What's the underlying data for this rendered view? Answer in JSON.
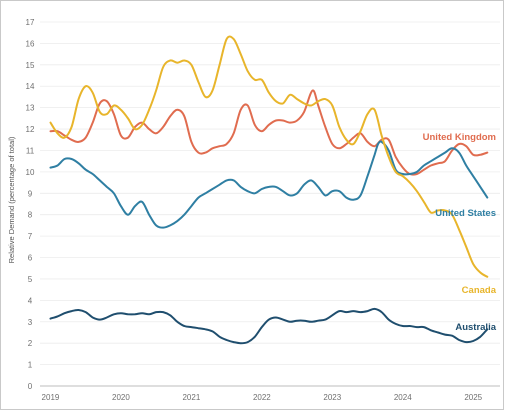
{
  "chart_data": {
    "type": "line",
    "title": "",
    "ylabel": "Relative Demand (percentage of total)",
    "xlabel": "",
    "xlim": [
      2018.88,
      2025.38
    ],
    "ylim": [
      0,
      17
    ],
    "x_ticks": [
      "2019",
      "2020",
      "2021",
      "2022",
      "2023",
      "2024",
      "2025"
    ],
    "y_ticks": [
      "0",
      "1",
      "2",
      "3",
      "4",
      "5",
      "6",
      "7",
      "8",
      "9",
      "10",
      "11",
      "12",
      "13",
      "14",
      "15",
      "16",
      "17"
    ],
    "grid": "horizontal",
    "legend": "inline-labels",
    "series": [
      {
        "name": "United Kingdom",
        "color": "#e06c4f",
        "points": [
          [
            2019.0,
            11.9
          ],
          [
            2019.1,
            11.9
          ],
          [
            2019.2,
            11.7
          ],
          [
            2019.3,
            11.5
          ],
          [
            2019.4,
            11.4
          ],
          [
            2019.5,
            11.6
          ],
          [
            2019.6,
            12.3
          ],
          [
            2019.7,
            13.2
          ],
          [
            2019.8,
            13.3
          ],
          [
            2019.9,
            12.7
          ],
          [
            2020.0,
            11.7
          ],
          [
            2020.1,
            11.6
          ],
          [
            2020.2,
            12.1
          ],
          [
            2020.3,
            12.3
          ],
          [
            2020.4,
            12.0
          ],
          [
            2020.5,
            11.8
          ],
          [
            2020.6,
            12.1
          ],
          [
            2020.7,
            12.6
          ],
          [
            2020.8,
            12.9
          ],
          [
            2020.9,
            12.6
          ],
          [
            2021.0,
            11.4
          ],
          [
            2021.1,
            10.9
          ],
          [
            2021.2,
            10.9
          ],
          [
            2021.3,
            11.1
          ],
          [
            2021.4,
            11.2
          ],
          [
            2021.5,
            11.3
          ],
          [
            2021.6,
            11.8
          ],
          [
            2021.7,
            12.9
          ],
          [
            2021.8,
            13.1
          ],
          [
            2021.9,
            12.2
          ],
          [
            2022.0,
            11.9
          ],
          [
            2022.1,
            12.2
          ],
          [
            2022.2,
            12.4
          ],
          [
            2022.3,
            12.4
          ],
          [
            2022.4,
            12.3
          ],
          [
            2022.5,
            12.4
          ],
          [
            2022.6,
            12.8
          ],
          [
            2022.72,
            13.8
          ],
          [
            2022.8,
            13.1
          ],
          [
            2022.9,
            12.1
          ],
          [
            2023.0,
            11.3
          ],
          [
            2023.1,
            11.1
          ],
          [
            2023.2,
            11.3
          ],
          [
            2023.3,
            11.6
          ],
          [
            2023.4,
            11.8
          ],
          [
            2023.5,
            11.4
          ],
          [
            2023.6,
            11.2
          ],
          [
            2023.7,
            11.5
          ],
          [
            2023.8,
            11.5
          ],
          [
            2023.9,
            10.7
          ],
          [
            2024.0,
            10.2
          ],
          [
            2024.1,
            9.9
          ],
          [
            2024.2,
            9.9
          ],
          [
            2024.3,
            10.1
          ],
          [
            2024.4,
            10.3
          ],
          [
            2024.5,
            10.4
          ],
          [
            2024.6,
            10.5
          ],
          [
            2024.7,
            11.0
          ],
          [
            2024.8,
            11.3
          ],
          [
            2024.9,
            11.2
          ],
          [
            2025.0,
            10.8
          ],
          [
            2025.1,
            10.8
          ],
          [
            2025.2,
            10.9
          ]
        ]
      },
      {
        "name": "United States",
        "color": "#2f7fa3",
        "points": [
          [
            2019.0,
            10.2
          ],
          [
            2019.1,
            10.3
          ],
          [
            2019.2,
            10.6
          ],
          [
            2019.3,
            10.6
          ],
          [
            2019.4,
            10.4
          ],
          [
            2019.5,
            10.1
          ],
          [
            2019.6,
            9.9
          ],
          [
            2019.7,
            9.6
          ],
          [
            2019.8,
            9.3
          ],
          [
            2019.9,
            9.0
          ],
          [
            2020.0,
            8.4
          ],
          [
            2020.1,
            8.0
          ],
          [
            2020.2,
            8.4
          ],
          [
            2020.3,
            8.6
          ],
          [
            2020.4,
            8.0
          ],
          [
            2020.5,
            7.5
          ],
          [
            2020.6,
            7.4
          ],
          [
            2020.7,
            7.5
          ],
          [
            2020.8,
            7.7
          ],
          [
            2020.9,
            8.0
          ],
          [
            2021.0,
            8.4
          ],
          [
            2021.1,
            8.8
          ],
          [
            2021.2,
            9.0
          ],
          [
            2021.3,
            9.2
          ],
          [
            2021.4,
            9.4
          ],
          [
            2021.5,
            9.6
          ],
          [
            2021.6,
            9.6
          ],
          [
            2021.7,
            9.3
          ],
          [
            2021.8,
            9.1
          ],
          [
            2021.9,
            9.0
          ],
          [
            2022.0,
            9.2
          ],
          [
            2022.1,
            9.3
          ],
          [
            2022.2,
            9.3
          ],
          [
            2022.3,
            9.1
          ],
          [
            2022.4,
            8.9
          ],
          [
            2022.5,
            9.0
          ],
          [
            2022.6,
            9.4
          ],
          [
            2022.7,
            9.6
          ],
          [
            2022.8,
            9.3
          ],
          [
            2022.9,
            8.9
          ],
          [
            2023.0,
            9.1
          ],
          [
            2023.1,
            9.1
          ],
          [
            2023.2,
            8.8
          ],
          [
            2023.3,
            8.7
          ],
          [
            2023.4,
            8.9
          ],
          [
            2023.5,
            9.8
          ],
          [
            2023.6,
            10.8
          ],
          [
            2023.65,
            11.3
          ],
          [
            2023.7,
            11.4
          ],
          [
            2023.8,
            11.0
          ],
          [
            2023.9,
            10.1
          ],
          [
            2024.0,
            9.9
          ],
          [
            2024.1,
            9.9
          ],
          [
            2024.2,
            10.0
          ],
          [
            2024.3,
            10.3
          ],
          [
            2024.4,
            10.5
          ],
          [
            2024.5,
            10.7
          ],
          [
            2024.6,
            10.9
          ],
          [
            2024.7,
            11.1
          ],
          [
            2024.8,
            10.9
          ],
          [
            2024.9,
            10.3
          ],
          [
            2025.0,
            9.8
          ],
          [
            2025.1,
            9.3
          ],
          [
            2025.2,
            8.8
          ]
        ]
      },
      {
        "name": "Canada",
        "color": "#e8b52b",
        "points": [
          [
            2019.0,
            12.3
          ],
          [
            2019.1,
            11.8
          ],
          [
            2019.2,
            11.6
          ],
          [
            2019.3,
            12.1
          ],
          [
            2019.4,
            13.4
          ],
          [
            2019.5,
            14.0
          ],
          [
            2019.6,
            13.7
          ],
          [
            2019.7,
            12.8
          ],
          [
            2019.8,
            12.7
          ],
          [
            2019.9,
            13.1
          ],
          [
            2020.0,
            12.9
          ],
          [
            2020.1,
            12.5
          ],
          [
            2020.2,
            12.0
          ],
          [
            2020.3,
            12.2
          ],
          [
            2020.4,
            12.9
          ],
          [
            2020.5,
            13.8
          ],
          [
            2020.6,
            14.9
          ],
          [
            2020.7,
            15.2
          ],
          [
            2020.8,
            15.1
          ],
          [
            2020.9,
            15.2
          ],
          [
            2021.0,
            15.0
          ],
          [
            2021.1,
            14.2
          ],
          [
            2021.2,
            13.5
          ],
          [
            2021.3,
            13.8
          ],
          [
            2021.4,
            15.0
          ],
          [
            2021.5,
            16.2
          ],
          [
            2021.6,
            16.2
          ],
          [
            2021.7,
            15.5
          ],
          [
            2021.8,
            14.7
          ],
          [
            2021.9,
            14.3
          ],
          [
            2022.0,
            14.3
          ],
          [
            2022.1,
            13.7
          ],
          [
            2022.2,
            13.3
          ],
          [
            2022.3,
            13.2
          ],
          [
            2022.4,
            13.6
          ],
          [
            2022.5,
            13.4
          ],
          [
            2022.6,
            13.2
          ],
          [
            2022.7,
            13.1
          ],
          [
            2022.8,
            13.3
          ],
          [
            2022.9,
            13.4
          ],
          [
            2023.0,
            13.1
          ],
          [
            2023.1,
            12.1
          ],
          [
            2023.2,
            11.5
          ],
          [
            2023.3,
            11.3
          ],
          [
            2023.4,
            11.9
          ],
          [
            2023.5,
            12.7
          ],
          [
            2023.6,
            12.9
          ],
          [
            2023.7,
            11.7
          ],
          [
            2023.8,
            10.7
          ],
          [
            2023.9,
            10.0
          ],
          [
            2024.0,
            9.8
          ],
          [
            2024.1,
            9.5
          ],
          [
            2024.2,
            9.1
          ],
          [
            2024.3,
            8.6
          ],
          [
            2024.4,
            8.1
          ],
          [
            2024.5,
            8.2
          ],
          [
            2024.6,
            8.2
          ],
          [
            2024.7,
            8.0
          ],
          [
            2024.8,
            7.3
          ],
          [
            2024.9,
            6.5
          ],
          [
            2025.0,
            5.7
          ],
          [
            2025.1,
            5.3
          ],
          [
            2025.2,
            5.1
          ]
        ]
      },
      {
        "name": "Australia",
        "color": "#1f4e6e",
        "points": [
          [
            2019.0,
            3.15
          ],
          [
            2019.1,
            3.25
          ],
          [
            2019.2,
            3.4
          ],
          [
            2019.3,
            3.5
          ],
          [
            2019.4,
            3.55
          ],
          [
            2019.5,
            3.45
          ],
          [
            2019.6,
            3.2
          ],
          [
            2019.7,
            3.1
          ],
          [
            2019.8,
            3.2
          ],
          [
            2019.9,
            3.35
          ],
          [
            2020.0,
            3.4
          ],
          [
            2020.1,
            3.35
          ],
          [
            2020.2,
            3.35
          ],
          [
            2020.3,
            3.4
          ],
          [
            2020.4,
            3.35
          ],
          [
            2020.5,
            3.45
          ],
          [
            2020.6,
            3.45
          ],
          [
            2020.7,
            3.3
          ],
          [
            2020.8,
            3.0
          ],
          [
            2020.9,
            2.8
          ],
          [
            2021.0,
            2.75
          ],
          [
            2021.1,
            2.7
          ],
          [
            2021.2,
            2.65
          ],
          [
            2021.3,
            2.55
          ],
          [
            2021.4,
            2.3
          ],
          [
            2021.5,
            2.15
          ],
          [
            2021.6,
            2.05
          ],
          [
            2021.7,
            2.0
          ],
          [
            2021.8,
            2.05
          ],
          [
            2021.9,
            2.3
          ],
          [
            2022.0,
            2.75
          ],
          [
            2022.1,
            3.1
          ],
          [
            2022.2,
            3.2
          ],
          [
            2022.3,
            3.1
          ],
          [
            2022.4,
            3.0
          ],
          [
            2022.5,
            3.05
          ],
          [
            2022.6,
            3.05
          ],
          [
            2022.7,
            3.0
          ],
          [
            2022.8,
            3.05
          ],
          [
            2022.9,
            3.1
          ],
          [
            2023.0,
            3.3
          ],
          [
            2023.1,
            3.5
          ],
          [
            2023.2,
            3.45
          ],
          [
            2023.3,
            3.5
          ],
          [
            2023.4,
            3.45
          ],
          [
            2023.5,
            3.5
          ],
          [
            2023.6,
            3.6
          ],
          [
            2023.7,
            3.45
          ],
          [
            2023.8,
            3.1
          ],
          [
            2023.9,
            2.9
          ],
          [
            2024.0,
            2.8
          ],
          [
            2024.1,
            2.8
          ],
          [
            2024.2,
            2.75
          ],
          [
            2024.3,
            2.75
          ],
          [
            2024.4,
            2.6
          ],
          [
            2024.5,
            2.5
          ],
          [
            2024.6,
            2.4
          ],
          [
            2024.7,
            2.35
          ],
          [
            2024.8,
            2.15
          ],
          [
            2024.9,
            2.05
          ],
          [
            2025.0,
            2.1
          ],
          [
            2025.1,
            2.3
          ],
          [
            2025.2,
            2.65
          ]
        ]
      }
    ]
  }
}
